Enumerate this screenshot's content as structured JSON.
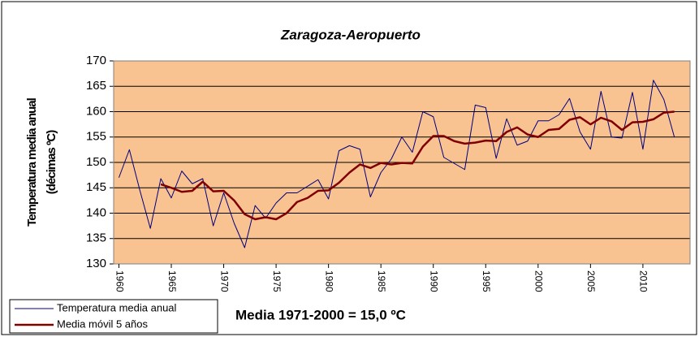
{
  "chart_data": {
    "type": "line",
    "title": "Zaragoza-Aeropuerto",
    "y_label": [
      "Temperatura media anual",
      "(décimas ºC)"
    ],
    "annotation": "Media 1971-2000 = 15,0 ºC",
    "x": [
      1960,
      1961,
      1962,
      1963,
      1964,
      1965,
      1966,
      1967,
      1968,
      1969,
      1970,
      1971,
      1972,
      1973,
      1974,
      1975,
      1976,
      1977,
      1978,
      1979,
      1980,
      1981,
      1982,
      1983,
      1984,
      1985,
      1986,
      1987,
      1988,
      1989,
      1990,
      1991,
      1992,
      1993,
      1994,
      1995,
      1996,
      1997,
      1998,
      1999,
      2000,
      2001,
      2002,
      2003,
      2004,
      2005,
      2006,
      2007,
      2008,
      2009,
      2010,
      2011,
      2012,
      2013
    ],
    "series": [
      {
        "name": "Temperatura media anual",
        "color": "#000080",
        "width": 1,
        "values": [
          147,
          152.5,
          144.5,
          137,
          146.8,
          143,
          148.3,
          145.8,
          146.8,
          137.5,
          144,
          138,
          133.2,
          141.5,
          139,
          142,
          144,
          144,
          145.3,
          146.6,
          142.8,
          152.3,
          153.3,
          152.6,
          143.2,
          148,
          150.7,
          155,
          152,
          160,
          159,
          151,
          149.8,
          148.6,
          161.3,
          160.8,
          150.8,
          158.6,
          153.4,
          154.2,
          158.2,
          158.2,
          159.4,
          162.6,
          156,
          152.6,
          164,
          155,
          154.8,
          163.8,
          152.6,
          166.2,
          162.4,
          155
        ]
      },
      {
        "name": "Media móvil 5 años",
        "color": "#800000",
        "width": 2.5,
        "values": [
          null,
          null,
          null,
          null,
          145.7,
          145,
          144.2,
          144.4,
          146.2,
          144.3,
          144.4,
          142.5,
          139.8,
          138.8,
          139.2,
          138.8,
          140,
          142.2,
          143,
          144.4,
          144.5,
          146,
          148,
          149.6,
          148.9,
          149.9,
          149.6,
          149.9,
          149.8,
          153.1,
          155.2,
          155.2,
          154.2,
          153.7,
          153.9,
          154.3,
          154.2,
          156,
          156.9,
          155.5,
          155,
          156.4,
          156.6,
          158.4,
          158.9,
          157.5,
          158.8,
          158.1,
          156.4,
          157.9,
          158,
          158.5,
          159.8,
          160
        ]
      }
    ],
    "xlim": [
      1959.5,
      2014.5
    ],
    "xticks": [
      1960,
      1965,
      1970,
      1975,
      1980,
      1985,
      1990,
      1995,
      2000,
      2005,
      2010
    ],
    "ylim": [
      130,
      170
    ],
    "yticks": [
      130,
      135,
      140,
      145,
      150,
      155,
      160,
      165,
      170
    ],
    "grid": true,
    "plot_background": "#F9C391",
    "legend": "lower left"
  }
}
